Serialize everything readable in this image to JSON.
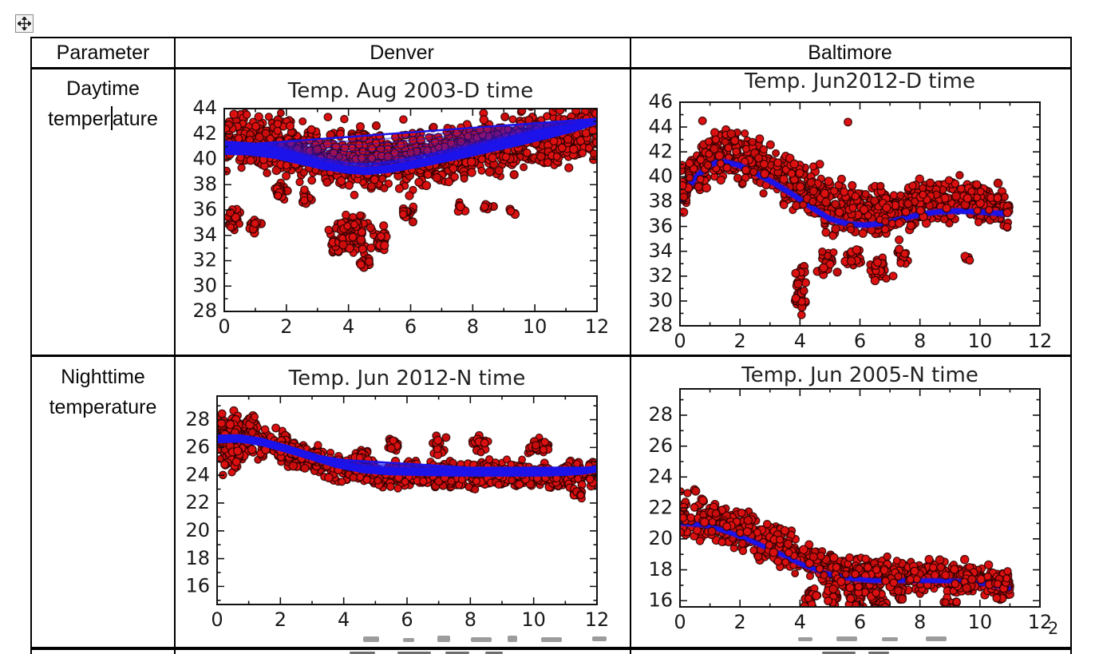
{
  "table": {
    "header": [
      "Parameter",
      "Denver",
      "Baltimore"
    ],
    "row_labels": [
      {
        "line1": "Daytime",
        "line2_pre": "temper",
        "line2_post": "ature"
      },
      {
        "line1": "Nighttime",
        "line2": "temperature"
      }
    ]
  },
  "stray_text": {
    "page_fragment": "2"
  },
  "style": {
    "dot_fill": "#dc1010",
    "dot_fill_alt": "#c90d0d",
    "dot_edge": "rgba(42,0,0,0.85)",
    "fit_color": "#1b13ea",
    "frame_color": "#111111",
    "tick_text_color": "#1a1a1a"
  },
  "chart_data": [
    {
      "id": "denver-daytime",
      "type": "scatter",
      "title": "Temp. Aug 2003-D time",
      "xlabel": "",
      "ylabel": "",
      "xlim": [
        0,
        12
      ],
      "ylim": [
        28,
        44
      ],
      "xticks": [
        0,
        2,
        4,
        6,
        8,
        10,
        12
      ],
      "yticks": [
        28,
        30,
        32,
        34,
        36,
        38,
        40,
        42,
        44
      ],
      "grid": false,
      "legend": null,
      "x_data_max": 12,
      "series_names": [
        "hourly temperature observations",
        "model fit ensemble"
      ],
      "fit": {
        "style": "band-fan",
        "trend": [
          [
            0,
            40.35
          ],
          [
            0.8,
            40.3
          ],
          [
            1.6,
            40.05
          ],
          [
            2.4,
            39.6
          ],
          [
            3.2,
            39.15
          ],
          [
            4,
            38.85
          ],
          [
            4.6,
            38.75
          ],
          [
            5.4,
            38.95
          ],
          [
            6.4,
            39.4
          ],
          [
            7.4,
            39.9
          ],
          [
            8.4,
            40.45
          ],
          [
            9.4,
            41.0
          ],
          [
            10.4,
            41.6
          ],
          [
            11.2,
            42.1
          ],
          [
            12,
            42.75
          ]
        ],
        "upper": [
          [
            0,
            41.05
          ],
          [
            12,
            43.2
          ]
        ],
        "thickness": [
          [
            0,
            1.05
          ],
          [
            2,
            0.85
          ],
          [
            4,
            0.65
          ],
          [
            6,
            0.7
          ],
          [
            8,
            0.8
          ],
          [
            10,
            0.85
          ],
          [
            12,
            0.45
          ]
        ],
        "fan_ts": [
          0.04,
          0.09,
          0.15,
          0.22,
          0.3,
          0.39,
          0.49,
          0.6,
          0.72,
          0.85,
          1
        ]
      },
      "scatter": {
        "seed": 11,
        "n": 1250,
        "bias": [
          [
            0,
            1.2
          ],
          [
            4,
            1.1
          ],
          [
            8,
            0.6
          ],
          [
            12,
            -0.4
          ]
        ],
        "spread": [
          [
            0,
            3.2
          ],
          [
            4,
            3.4
          ],
          [
            8,
            3.3
          ],
          [
            12,
            3.2
          ]
        ],
        "clip_hi": 44.4,
        "clusters": [
          [
            0.35,
            35.3,
            0.35,
            1.3,
            22
          ],
          [
            0.95,
            34.8,
            0.3,
            1.0,
            15
          ],
          [
            1.8,
            37.4,
            0.35,
            1.0,
            20
          ],
          [
            2.6,
            37.0,
            0.3,
            1.0,
            18
          ],
          [
            3.6,
            33.2,
            0.3,
            1.2,
            25
          ],
          [
            4.1,
            34.2,
            0.8,
            2.0,
            110
          ],
          [
            4.55,
            31.9,
            0.3,
            0.6,
            10
          ],
          [
            5.0,
            33.6,
            0.35,
            1.4,
            30
          ],
          [
            5.9,
            35.8,
            0.3,
            0.8,
            15
          ],
          [
            7.6,
            36.2,
            0.25,
            0.5,
            8
          ],
          [
            8.45,
            36.3,
            0.3,
            0.5,
            8
          ],
          [
            9.3,
            35.8,
            0.18,
            0.4,
            5
          ]
        ],
        "outliers": []
      }
    },
    {
      "id": "baltimore-daytime",
      "type": "scatter",
      "title": "Temp. Jun2012-D time",
      "xlabel": "",
      "ylabel": "",
      "xlim": [
        0,
        12
      ],
      "ylim": [
        28,
        46
      ],
      "xticks": [
        0,
        2,
        4,
        6,
        8,
        10,
        12
      ],
      "yticks": [
        28,
        30,
        32,
        34,
        36,
        38,
        40,
        42,
        44,
        46
      ],
      "grid": false,
      "legend": null,
      "x_data_max": 11,
      "series_names": [
        "hourly temperature observations",
        "model fit"
      ],
      "fit": {
        "style": "line",
        "width": 6,
        "trend": [
          [
            0,
            38.2
          ],
          [
            0.5,
            39.9
          ],
          [
            1.0,
            41.0
          ],
          [
            1.4,
            41.25
          ],
          [
            2.0,
            40.9
          ],
          [
            2.6,
            40.2
          ],
          [
            3.2,
            39.4
          ],
          [
            3.8,
            38.5
          ],
          [
            4.4,
            37.5
          ],
          [
            5.0,
            36.6
          ],
          [
            5.6,
            36.2
          ],
          [
            6.2,
            36.1
          ],
          [
            6.9,
            36.3
          ],
          [
            7.7,
            36.8
          ],
          [
            8.5,
            37.15
          ],
          [
            9.3,
            37.25
          ],
          [
            10.1,
            37.15
          ],
          [
            11,
            37.0
          ]
        ]
      },
      "scatter": {
        "seed": 22,
        "n": 1000,
        "bias": [
          [
            0,
            0.4
          ],
          [
            3,
            0.9
          ],
          [
            5,
            1.2
          ],
          [
            8,
            0.9
          ],
          [
            11,
            0.5
          ]
        ],
        "spread": [
          [
            0,
            2.6
          ],
          [
            3,
            2.8
          ],
          [
            5,
            3.0
          ],
          [
            8,
            2.6
          ],
          [
            11,
            2.2
          ]
        ],
        "clip_hi": 45.0,
        "clusters": [
          [
            1.0,
            41.5,
            0.6,
            1.5,
            40
          ],
          [
            4.0,
            31.0,
            0.3,
            3.0,
            40
          ],
          [
            4.9,
            33.0,
            0.45,
            1.5,
            30
          ],
          [
            5.8,
            33.5,
            0.4,
            1.2,
            25
          ],
          [
            6.7,
            32.6,
            0.5,
            1.3,
            35
          ],
          [
            7.4,
            33.5,
            0.3,
            1.0,
            18
          ],
          [
            9.6,
            33.5,
            0.15,
            0.35,
            5
          ]
        ],
        "outliers": [
          [
            0.75,
            44.5
          ],
          [
            5.6,
            44.4
          ]
        ]
      }
    },
    {
      "id": "denver-nighttime",
      "type": "scatter",
      "title": "Temp. Jun 2012-N time",
      "xlabel": "",
      "ylabel": "",
      "xlim": [
        0,
        12
      ],
      "ylim": [
        14.7,
        29.7
      ],
      "xticks": [
        0,
        2,
        4,
        6,
        8,
        10,
        12
      ],
      "yticks": [
        16,
        18,
        20,
        22,
        24,
        26,
        28
      ],
      "grid": false,
      "legend": null,
      "x_data_max": 12,
      "series_names": [
        "hourly temperature observations",
        "model fit ensemble"
      ],
      "fit": {
        "style": "band-fan",
        "trend": [
          [
            0,
            26.3
          ],
          [
            0.7,
            26.35
          ],
          [
            1.4,
            26.1
          ],
          [
            2.2,
            25.6
          ],
          [
            3.0,
            25.05
          ],
          [
            3.8,
            24.5
          ],
          [
            4.6,
            24.15
          ],
          [
            5.4,
            24.0
          ],
          [
            6.4,
            23.95
          ],
          [
            7.6,
            23.9
          ],
          [
            9.0,
            23.9
          ],
          [
            10.2,
            23.9
          ],
          [
            11.0,
            23.95
          ],
          [
            11.6,
            24.05
          ],
          [
            12,
            24.2
          ]
        ],
        "upper": [
          [
            0,
            26.6
          ],
          [
            4,
            25.1
          ],
          [
            8,
            24.55
          ],
          [
            12,
            24.55
          ]
        ],
        "thickness": [
          [
            0,
            0.55
          ],
          [
            4,
            0.5
          ],
          [
            8,
            0.55
          ],
          [
            12,
            0.45
          ]
        ],
        "fan_ts": [
          0.06,
          0.14,
          0.24,
          0.38,
          0.55,
          0.75,
          1
        ]
      },
      "scatter": {
        "seed": 33,
        "n": 950,
        "bias": [
          [
            0,
            0.6
          ],
          [
            1.5,
            0.2
          ],
          [
            3,
            0.1
          ],
          [
            12,
            0.05
          ]
        ],
        "spread": [
          [
            0,
            2.6
          ],
          [
            1.2,
            2.0
          ],
          [
            2.5,
            1.5
          ],
          [
            4,
            1.3
          ],
          [
            12,
            1.25
          ]
        ],
        "clip_hi": 29.5,
        "clusters": [
          [
            0.45,
            26.2,
            0.5,
            2.4,
            150
          ],
          [
            1.1,
            27.2,
            0.25,
            1.5,
            40
          ],
          [
            2.0,
            25.9,
            0.3,
            0.8,
            25
          ],
          [
            3.1,
            25.4,
            0.35,
            0.6,
            20
          ],
          [
            4.6,
            25.4,
            0.3,
            0.7,
            18
          ],
          [
            5.6,
            26.2,
            0.3,
            0.8,
            22
          ],
          [
            7.0,
            26.1,
            0.3,
            0.9,
            20
          ],
          [
            8.3,
            26.4,
            0.3,
            0.9,
            20
          ],
          [
            10.2,
            26.1,
            0.5,
            0.7,
            30
          ],
          [
            11.4,
            22.7,
            0.35,
            0.6,
            18
          ]
        ],
        "outliers": []
      }
    },
    {
      "id": "baltimore-nighttime",
      "type": "scatter",
      "title": "Temp. Jun 2005-N time",
      "xlabel": "",
      "ylabel": "",
      "xlim": [
        0,
        12
      ],
      "ylim": [
        15.6,
        29.7
      ],
      "xticks": [
        0,
        2,
        4,
        6,
        8,
        10,
        12
      ],
      "yticks": [
        16,
        18,
        20,
        22,
        24,
        26,
        28
      ],
      "grid": false,
      "legend": null,
      "x_data_max": 11,
      "series_names": [
        "hourly temperature observations",
        "model fit"
      ],
      "fit": {
        "style": "line",
        "width": 5,
        "trend": [
          [
            0,
            21.0
          ],
          [
            0.8,
            20.9
          ],
          [
            1.6,
            20.45
          ],
          [
            2.4,
            19.85
          ],
          [
            3.2,
            19.15
          ],
          [
            4.0,
            18.4
          ],
          [
            4.8,
            17.8
          ],
          [
            5.6,
            17.45
          ],
          [
            6.4,
            17.3
          ],
          [
            7.4,
            17.3
          ],
          [
            8.4,
            17.3
          ],
          [
            9.4,
            17.25
          ],
          [
            10.2,
            17.1
          ],
          [
            11,
            16.8
          ]
        ]
      },
      "scatter": {
        "seed": 44,
        "n": 900,
        "bias": [
          [
            0,
            0.5
          ],
          [
            4,
            0.4
          ],
          [
            6,
            0.3
          ],
          [
            11,
            0.2
          ]
        ],
        "spread": [
          [
            0,
            1.9
          ],
          [
            3,
            1.8
          ],
          [
            5,
            1.6
          ],
          [
            8,
            1.5
          ],
          [
            11,
            1.3
          ]
        ],
        "clip_hi": 23.6,
        "clusters": [
          [
            4.35,
            15.9,
            0.3,
            1.6,
            35
          ],
          [
            5.1,
            16.2,
            0.3,
            1.0,
            20
          ],
          [
            5.9,
            15.9,
            0.35,
            1.2,
            25
          ],
          [
            6.6,
            15.8,
            0.45,
            1.2,
            30
          ],
          [
            7.3,
            16.4,
            0.3,
            0.8,
            15
          ],
          [
            9.05,
            15.3,
            0.4,
            1.6,
            35
          ],
          [
            10.9,
            17.3,
            0.25,
            0.9,
            15
          ]
        ],
        "outliers": []
      }
    }
  ]
}
